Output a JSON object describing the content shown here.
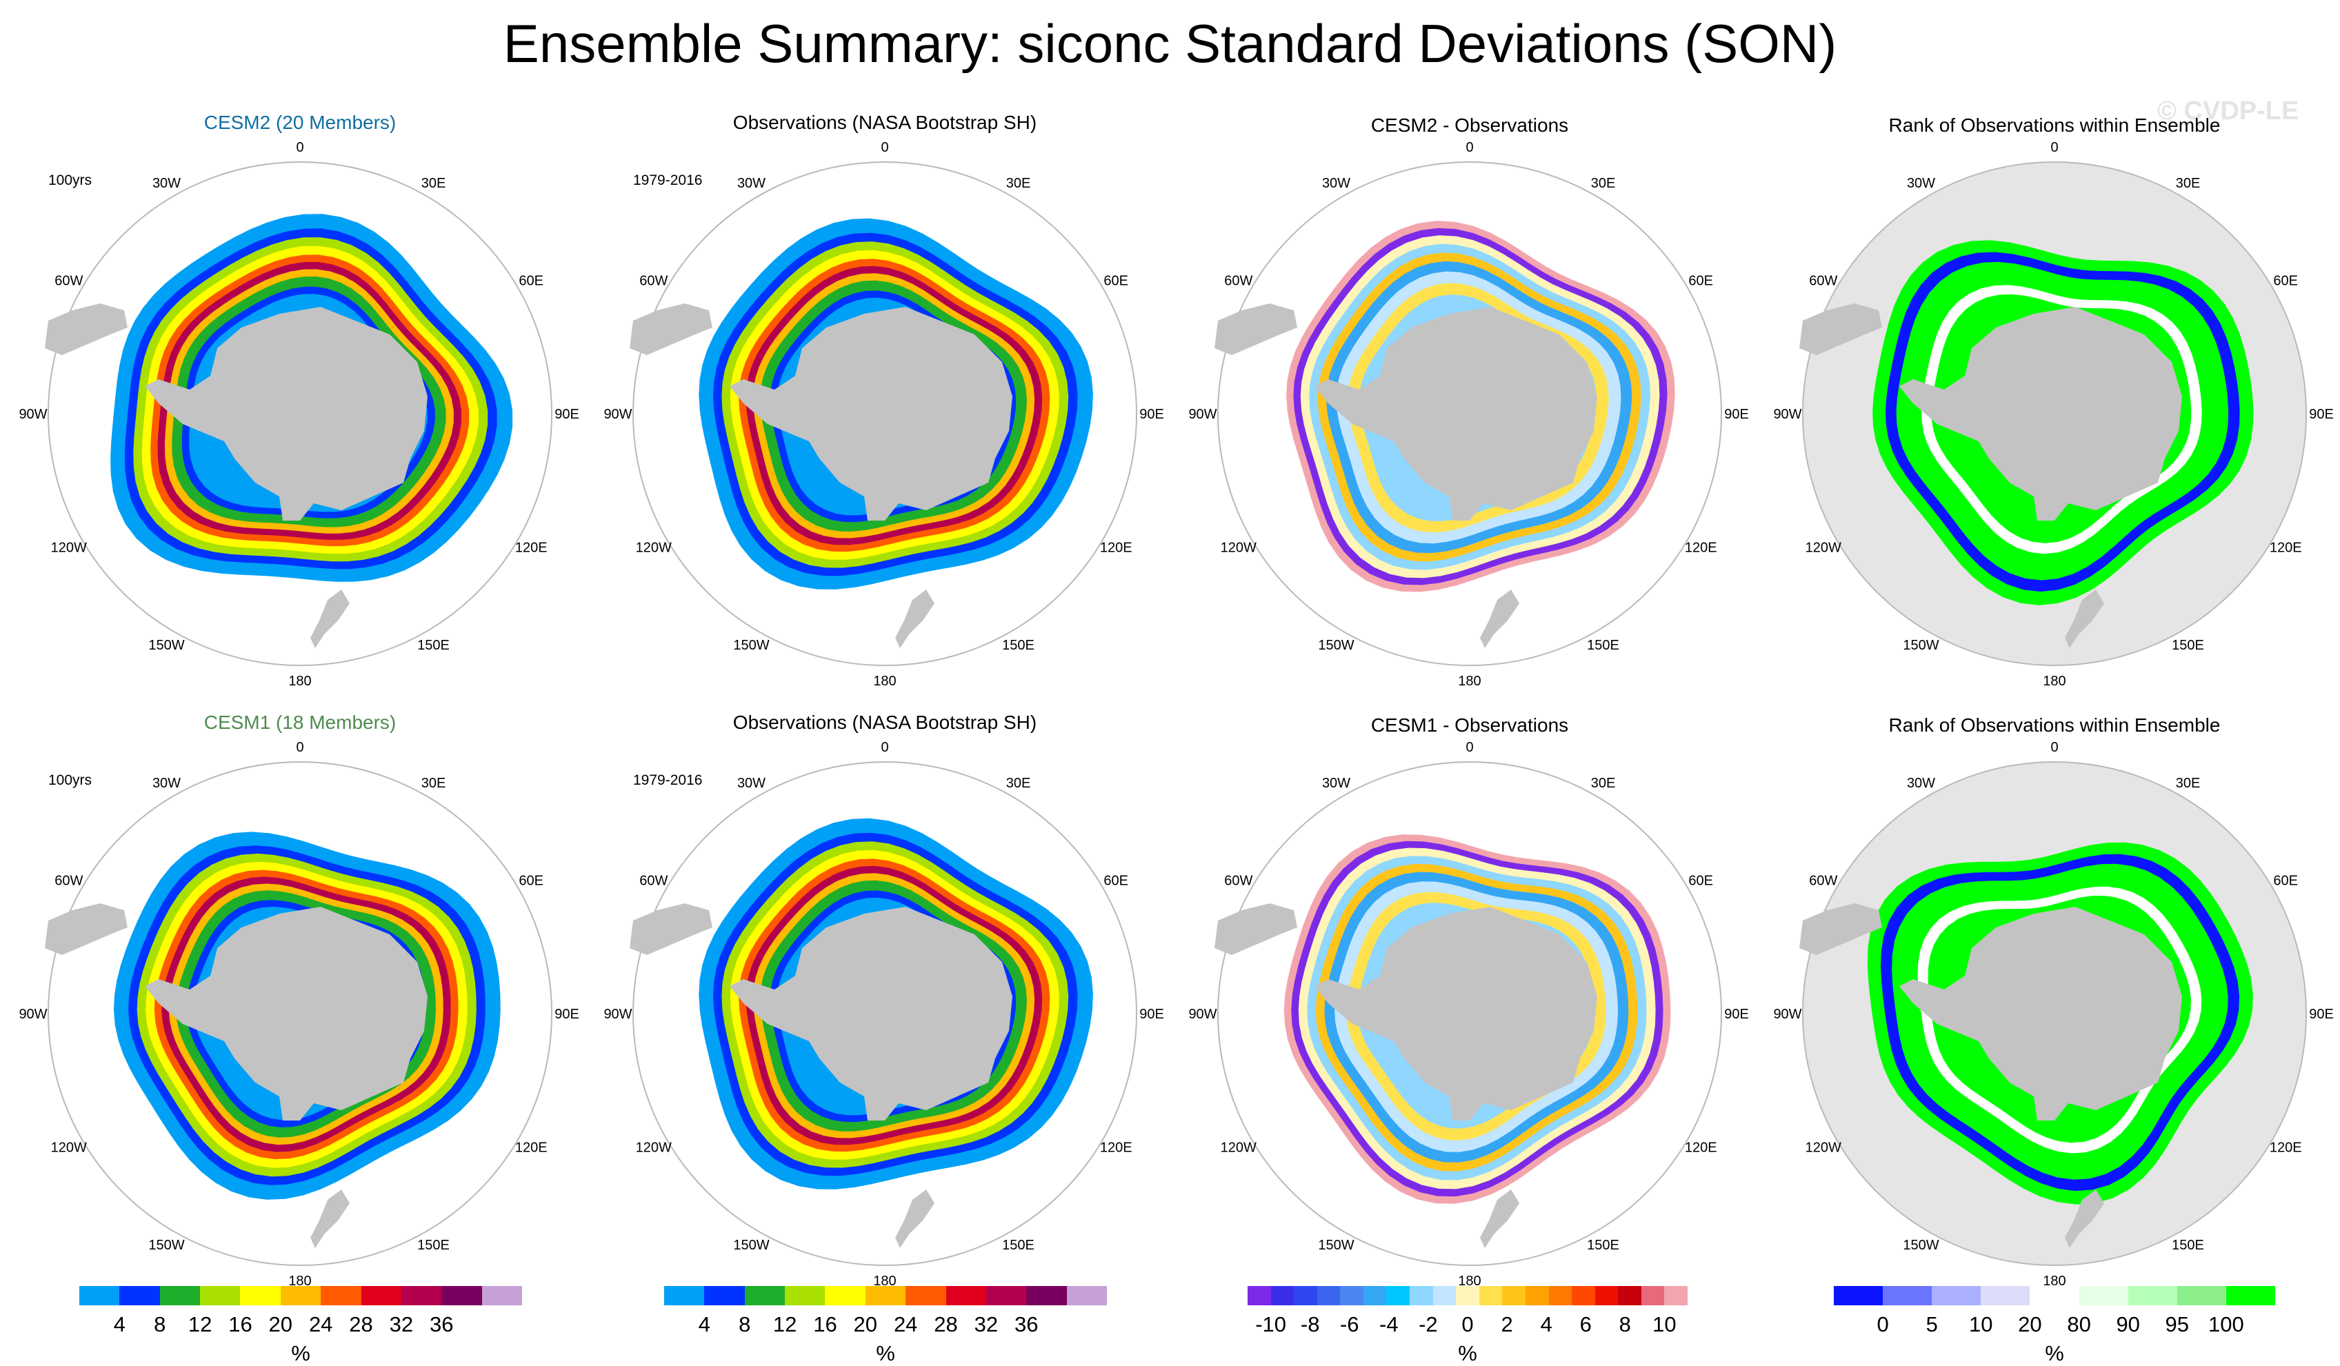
{
  "title": "Ensemble Summary: siconc Standard Deviations (SON)",
  "watermark": "© CVDP-LE",
  "colors": {
    "model1_title": "#0f6ea0",
    "model2_title": "#4e8a4e",
    "land": "#c3c3c3",
    "circle": "#b9b9b9",
    "rank_ocean": "#e5e5e5"
  },
  "longitude_labels": [
    "0",
    "30E",
    "60E",
    "90E",
    "120E",
    "150E",
    "180",
    "150W",
    "120W",
    "90W",
    "60W",
    "30W"
  ],
  "rows": [
    {
      "panels": [
        {
          "title": "CESM2 (20 Members)",
          "title_color": "model1_title",
          "period": "100yrs",
          "kind": "std",
          "variant": 0
        },
        {
          "title": "Observations (NASA Bootstrap SH)",
          "period": "1979-2016",
          "kind": "std",
          "variant": 1
        },
        {
          "title": "CESM2 - Observations",
          "period": "",
          "kind": "diff",
          "variant": 0
        },
        {
          "title": "Rank of Observations within Ensemble",
          "period": "",
          "kind": "rank",
          "variant": 0
        }
      ]
    },
    {
      "panels": [
        {
          "title": "CESM1 (18 Members)",
          "title_color": "model2_title",
          "period": "100yrs",
          "kind": "std",
          "variant": 2
        },
        {
          "title": "Observations (NASA Bootstrap SH)",
          "period": "1979-2016",
          "kind": "std",
          "variant": 1
        },
        {
          "title": "CESM1 - Observations",
          "period": "",
          "kind": "diff",
          "variant": 1
        },
        {
          "title": "Rank of Observations within Ensemble",
          "period": "",
          "kind": "rank",
          "variant": 1
        }
      ]
    }
  ],
  "colorbars": [
    {
      "name": "std",
      "colors": [
        "#00a0f6",
        "#0033ff",
        "#1fad2c",
        "#a9e000",
        "#ffff00",
        "#ffbb00",
        "#ff5a00",
        "#e0001e",
        "#b2004f",
        "#7a005f",
        "#c6a0d6"
      ],
      "labels": [
        "4",
        "8",
        "12",
        "16",
        "20",
        "24",
        "28",
        "32",
        "36"
      ],
      "unit": "%"
    },
    {
      "name": "std",
      "colors": [
        "#00a0f6",
        "#0033ff",
        "#1fad2c",
        "#a9e000",
        "#ffff00",
        "#ffbb00",
        "#ff5a00",
        "#e0001e",
        "#b2004f",
        "#7a005f",
        "#c6a0d6"
      ],
      "labels": [
        "4",
        "8",
        "12",
        "16",
        "20",
        "24",
        "28",
        "32",
        "36"
      ],
      "unit": "%"
    },
    {
      "name": "diff",
      "colors": [
        "#7d2ae8",
        "#3b2eea",
        "#2f47f0",
        "#3a66f0",
        "#4a86f2",
        "#35a6f4",
        "#00c8ff",
        "#8fd7ff",
        "#c2e6ff",
        "#fff5b8",
        "#ffe14e",
        "#ffc41a",
        "#ffa100",
        "#ff7a00",
        "#ff4800",
        "#f01000",
        "#c8000c",
        "#e8687c",
        "#f3a5ad"
      ],
      "labels": [
        "-10",
        "-8",
        "-6",
        "-4",
        "-2",
        "0",
        "2",
        "4",
        "6",
        "8",
        "10"
      ],
      "unit": "%"
    },
    {
      "name": "rank",
      "colors": [
        "#0a14ff",
        "#6a74ff",
        "#aab0ff",
        "#dcdcf8",
        "#ffffff",
        "#e6ffe6",
        "#b6ffb6",
        "#8cef8c",
        "#00ff00"
      ],
      "labels": [
        "0",
        "5",
        "10",
        "20",
        "80",
        "90",
        "95",
        "100"
      ],
      "unit": "%"
    }
  ]
}
